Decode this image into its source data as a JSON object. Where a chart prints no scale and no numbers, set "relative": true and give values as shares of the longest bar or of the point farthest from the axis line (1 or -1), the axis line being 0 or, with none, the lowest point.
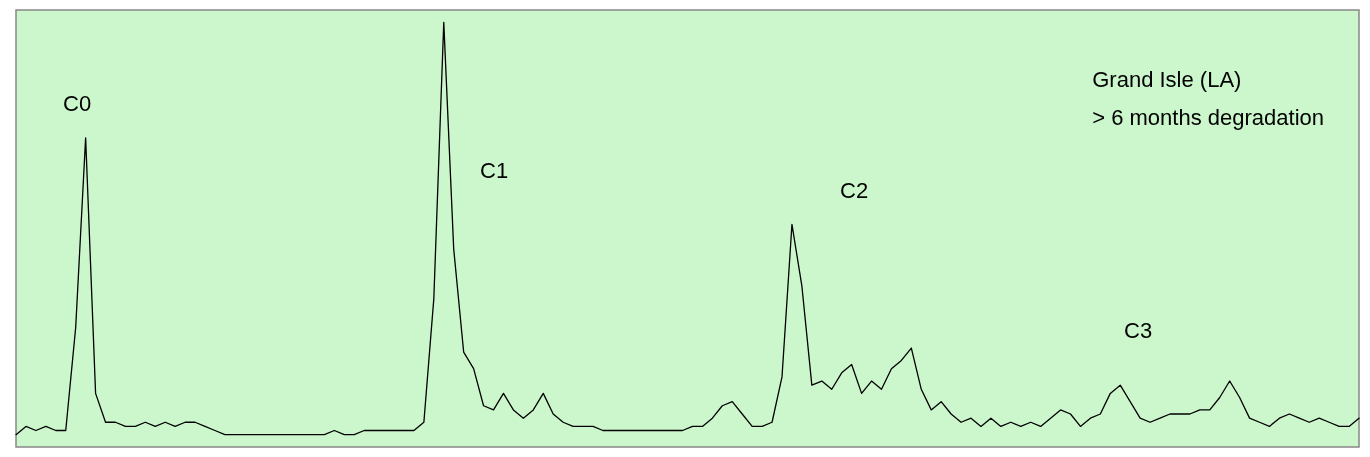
{
  "chart_data": {
    "type": "line",
    "relative": true,
    "grid": false,
    "marker": "none",
    "line_style": "solid",
    "categories": [
      null,
      null,
      null,
      null,
      null,
      null,
      null,
      null,
      null,
      null,
      null,
      null,
      null,
      null,
      null,
      null,
      null,
      null,
      null,
      null,
      null,
      null,
      null,
      null,
      null,
      null,
      null,
      null,
      null,
      null,
      null,
      null,
      null,
      null,
      null,
      null,
      null,
      null,
      null,
      null,
      null,
      null,
      null,
      null,
      null,
      null,
      null,
      null,
      null,
      null,
      null,
      null,
      null,
      null,
      null,
      null,
      null,
      null,
      null,
      null,
      null,
      null,
      null,
      null,
      null,
      null,
      null,
      null,
      null,
      null,
      null,
      null,
      null,
      null,
      null,
      null,
      null,
      null,
      null,
      null,
      null,
      null,
      null,
      null,
      null,
      null,
      null,
      null,
      null,
      null,
      null,
      null,
      null,
      null,
      null,
      null,
      null,
      null,
      null,
      null,
      null,
      null,
      null,
      null,
      null,
      null,
      null,
      null,
      null,
      null,
      null,
      null,
      null,
      null,
      null,
      null,
      null,
      null,
      null,
      null,
      null,
      null,
      null,
      null,
      null,
      null,
      null,
      null,
      null,
      null,
      null,
      null,
      null,
      null,
      null,
      null
    ],
    "series": [
      {
        "color": "#000000",
        "values": [
          0.0,
          0.02,
          0.01,
          0.02,
          0.01,
          0.01,
          0.26,
          0.72,
          0.1,
          0.03,
          0.03,
          0.02,
          0.02,
          0.03,
          0.02,
          0.03,
          0.02,
          0.03,
          0.03,
          0.02,
          0.01,
          0.0,
          0.0,
          0,
          0.0,
          0,
          0.0,
          0.0,
          0,
          0.0,
          0.0,
          0.0,
          0.01,
          0.0,
          0.0,
          0.01,
          0.01,
          0.01,
          0.01,
          0.01,
          0.01,
          0.03,
          0.33,
          1,
          0.45,
          0.2,
          0.16,
          0.07,
          0.06,
          0.1,
          0.06,
          0.04,
          0.06,
          0.1,
          0.05,
          0.03,
          0.02,
          0.02,
          0.02,
          0.01,
          0.01,
          0.01,
          0.01,
          0.01,
          0.01,
          0.01,
          0.01,
          0.01,
          0.02,
          0.02,
          0.04,
          0.07,
          0.08,
          0.05,
          0.02,
          0.02,
          0.03,
          0.14,
          0.51,
          0.36,
          0.12,
          0.13,
          0.11,
          0.15,
          0.17,
          0.1,
          0.13,
          0.11,
          0.16,
          0.18,
          0.21,
          0.11,
          0.06,
          0.08,
          0.05,
          0.03,
          0.04,
          0.02,
          0.04,
          0.02,
          0.03,
          0.02,
          0.03,
          0.02,
          0.04,
          0.06,
          0.05,
          0.02,
          0.04,
          0.05,
          0.1,
          0.12,
          0.08,
          0.04,
          0.03,
          0.04,
          0.05,
          0.05,
          0.05,
          0.06,
          0.06,
          0.09,
          0.13,
          0.09,
          0.04,
          0.03,
          0.02,
          0.04,
          0.05,
          0.04,
          0.03,
          0.04,
          0.03,
          0.02,
          0.02,
          0.04
        ]
      }
    ],
    "annotations": [
      "C0",
      "C1",
      "C2",
      "C3",
      "Grand Isle (LA)\n> 6 months degradation"
    ]
  }
}
